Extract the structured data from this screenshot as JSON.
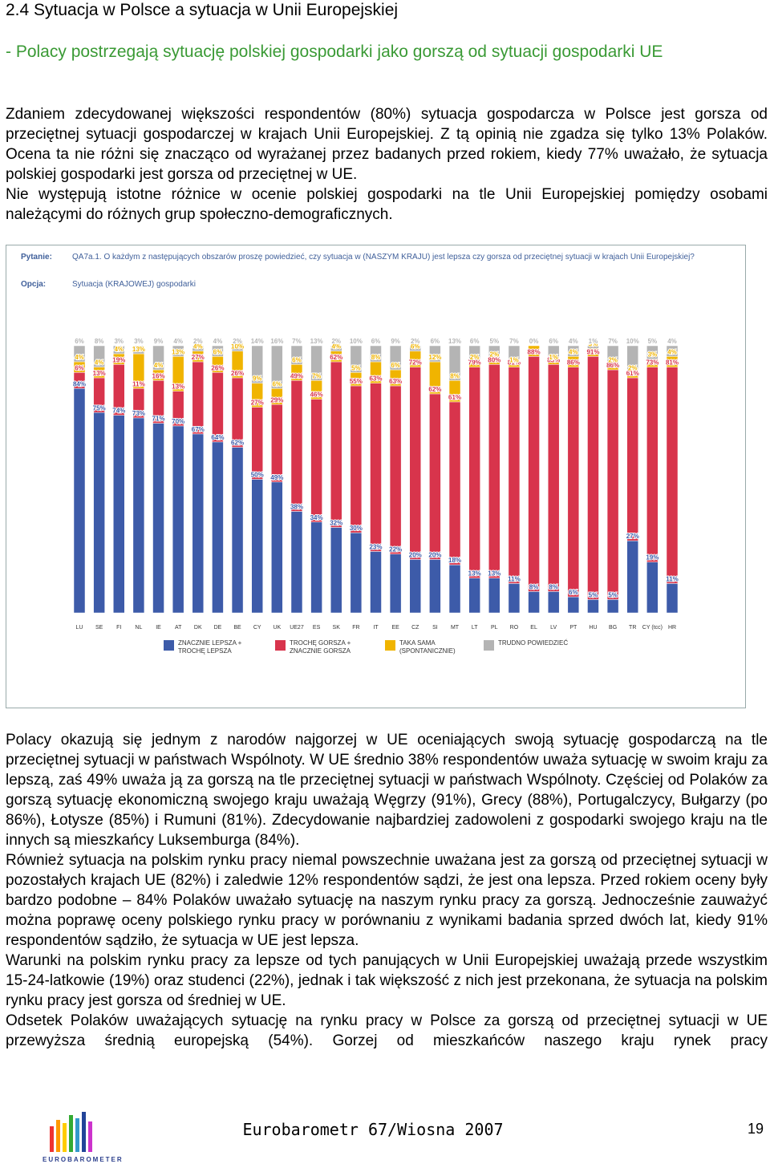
{
  "heading": "2.4 Sytuacja w Polsce a sytuacja w Unii Europejskiej",
  "subheading": "- Polacy postrzegają sytuację polskiej gospodarki jako gorszą od sytuacji gospodarki UE",
  "paragraphs_top": [
    "Zdaniem zdecydowanej większości respondentów (80%) sytuacja gospodarcza w Polsce jest gorsza od przeciętnej sytuacji gospodarczej w krajach Unii Europejskiej. Z tą opinią nie zgadza się tylko 13% Polaków. Ocena ta nie różni się znacząco od wyrażanej przez badanych przed rokiem, kiedy 77% uważało, że sytuacja polskiej gospodarki jest gorsza od przeciętnej w UE.",
    "Nie występują istotne różnice w ocenie polskiej gospodarki na tle Unii Europejskiej pomiędzy osobami należącymi do różnych grup społeczno-demograficznych."
  ],
  "chart_data": {
    "type": "bar",
    "stacked": true,
    "question_label": "Pytanie:",
    "question": "QA7a.1. O każdym z następujących obszarów proszę powiedzieć, czy sytuacja w (NASZYM KRAJU) jest lepsza czy gorsza od przeciętnej sytuacji w krajach Unii Europejskiej?",
    "option_label": "Opcja:",
    "option": "Sytuacja (KRAJOWEJ) gospodarki",
    "categories": [
      "LU",
      "SE",
      "FI",
      "NL",
      "IE",
      "AT",
      "DK",
      "DE",
      "BE",
      "CY",
      "UK",
      "UE27",
      "ES",
      "SK",
      "FR",
      "IT",
      "EE",
      "CZ",
      "SI",
      "MT",
      "LT",
      "PL",
      "RO",
      "EL",
      "LV",
      "PT",
      "HU",
      "BG",
      "TR",
      "CY (tcc)",
      "HR"
    ],
    "ylim": [
      0,
      100
    ],
    "series": [
      {
        "name": "ZNACZNIE LEPSZA + TROCHĘ LEPSZA",
        "color": "#3d5ba9",
        "values": [
          84,
          75,
          74,
          73,
          71,
          70,
          67,
          64,
          62,
          50,
          49,
          38,
          34,
          32,
          30,
          23,
          22,
          20,
          20,
          18,
          13,
          13,
          11,
          8,
          8,
          6,
          5,
          5,
          27,
          19,
          11
        ],
        "value_labels": [
          "84%",
          "75%",
          "74%",
          "73%",
          "71%",
          "70%",
          "67%",
          "64%",
          "62%",
          "50%",
          "49%",
          "38%",
          "34%",
          "32%",
          "30%",
          "23%",
          "22%",
          "20%",
          "20%",
          "18%",
          "13%",
          "13%",
          "11%",
          "8%",
          "8%",
          "6%",
          "5%",
          "5%",
          "27%",
          "19%",
          "11%"
        ]
      },
      {
        "name": "TROCHĘ GORSZA + ZNACZNIE GORSZA",
        "color": "#d8344c",
        "values": [
          6,
          13,
          19,
          11,
          16,
          13,
          27,
          26,
          26,
          27,
          29,
          49,
          46,
          62,
          55,
          63,
          63,
          72,
          62,
          61,
          79,
          80,
          81,
          88,
          85,
          86,
          91,
          86,
          61,
          73,
          81
        ],
        "value_labels": [
          "6%",
          "13%",
          "19%",
          "11%",
          "16%",
          "13%",
          "27%",
          "26%",
          "26%",
          "27%",
          "29%",
          "49%",
          "46%",
          "62%",
          "55%",
          "63%",
          "63%",
          "72%",
          "62%",
          "61%",
          "79%",
          "80%",
          "81%",
          "88%",
          "85%",
          "86%",
          "91%",
          "86%",
          "61%",
          "73%",
          "81%"
        ]
      },
      {
        "name": "TAKA SAMA (SPONTANICZNIE)",
        "color": "#f0b400",
        "values": [
          4,
          4,
          4,
          13,
          4,
          13,
          4,
          6,
          10,
          9,
          6,
          6,
          7,
          4,
          5,
          8,
          6,
          6,
          12,
          8,
          2,
          2,
          1,
          4,
          1,
          4,
          3,
          2,
          2,
          3,
          4
        ],
        "value_labels": [
          "4%",
          "4%",
          "4%",
          "13%",
          "4%",
          "13%",
          "4%",
          "6%",
          "10%",
          "9%",
          "6%",
          "6%",
          "7%",
          "4%",
          "5%",
          "8%",
          "6%",
          "6%",
          "12%",
          "8%",
          "2%",
          "2%",
          "1%",
          "4%",
          "1%",
          "4%",
          "3%",
          "2%",
          "2%",
          "3%",
          "4%"
        ]
      },
      {
        "name": "TRUDNO POWIEDZIEĆ",
        "color": "#b4b4b4",
        "values": [
          6,
          8,
          3,
          3,
          9,
          4,
          2,
          4,
          2,
          14,
          16,
          7,
          13,
          2,
          10,
          6,
          9,
          2,
          6,
          13,
          6,
          5,
          7,
          0,
          6,
          4,
          1,
          7,
          10,
          5,
          4
        ],
        "value_labels": [
          "6%",
          "8%",
          "3%",
          "3%",
          "9%",
          "4%",
          "2%",
          "4%",
          "2%",
          "14%",
          "16%",
          "7%",
          "13%",
          "2%",
          "10%",
          "6%",
          "9%",
          "2%",
          "6%",
          "13%",
          "6%",
          "5%",
          "7%",
          "0%",
          "6%",
          "4%",
          "1%",
          "7%",
          "10%",
          "5%",
          "4%"
        ]
      }
    ]
  },
  "paragraphs_bottom": [
    "Polacy okazują się jednym z narodów najgorzej w UE oceniających swoją sytuację gospodarczą na tle przeciętnej sytuacji w państwach Wspólnoty. W UE średnio 38% respondentów uważa sytuację w swoim kraju za lepszą, zaś 49% uważa ją za gorszą na tle przeciętnej sytuacji w państwach Wspólnoty. Częściej od Polaków za gorszą sytuację ekonomiczną swojego kraju uważają Węgrzy (91%), Grecy (88%), Portugalczycy, Bułgarzy (po 86%), Łotysze (85%) i Rumuni (81%). Zdecydowanie najbardziej zadowoleni z gospodarki swojego kraju na tle innych są mieszkańcy Luksemburga (84%).",
    "Również sytuacja na polskim rynku pracy niemal powszechnie uważana jest za gorszą od przeciętnej sytuacji w pozostałych krajach UE (82%) i zaledwie 12% respondentów sądzi, że jest ona lepsza. Przed rokiem oceny były bardzo podobne – 84% Polaków uważało sytuację na naszym rynku pracy za gorszą. Jednocześnie zauważyć można poprawę oceny polskiego rynku pracy w porównaniu z wynikami badania sprzed dwóch lat, kiedy 91% respondentów sądziło, że sytuacja w UE jest lepsza.",
    "Warunki na polskim rynku pracy za lepsze od tych panujących w Unii Europejskiej uważają przede wszystkim 15-24-latkowie (19%) oraz studenci (22%), jednak i tak większość z nich jest przekonana, że sytuacja na polskim rynku pracy jest gorsza od średniej w UE.",
    "Odsetek Polaków uważających sytuację na rynku pracy w Polsce za gorszą od przeciętnej sytuacji w UE przewyższa średnią europejską (54%). Gorzej od mieszkańców naszego kraju rynek pracy"
  ],
  "footer": {
    "logo_text": "EUROBAROMETER",
    "title": "Eurobarometr 67/Wiosna 2007",
    "page": "19"
  }
}
